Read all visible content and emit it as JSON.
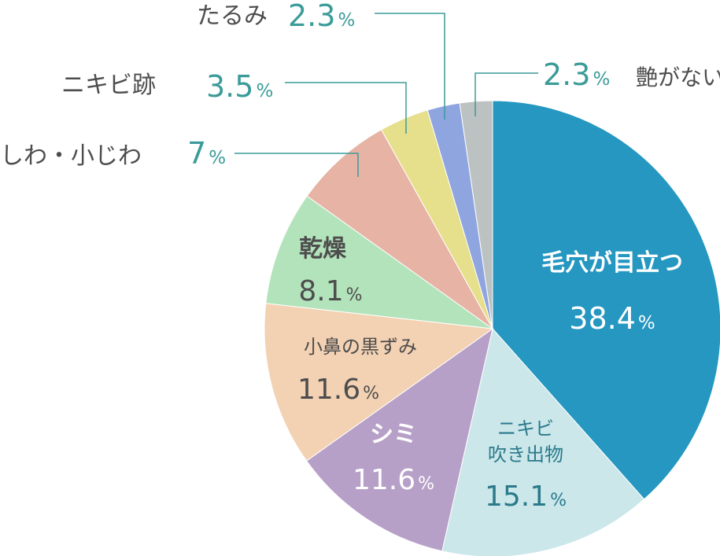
{
  "chart_data": {
    "type": "pie",
    "percent_symbol": "%",
    "slices": [
      {
        "name": "毛穴が目立つ",
        "value": 38.4,
        "value_text": "38.4",
        "color": "#2597c1"
      },
      {
        "name": "ニキビ吹き出物",
        "name_lines": [
          "ニキビ",
          "吹き出物"
        ],
        "value": 15.1,
        "value_text": "15.1",
        "color": "#cbe7ea"
      },
      {
        "name": "シミ",
        "value": 11.6,
        "value_text": "11.6",
        "color": "#b7a0c8"
      },
      {
        "name": "小鼻の黒ずみ",
        "value": 11.6,
        "value_text": "11.6",
        "color": "#f3d1b3"
      },
      {
        "name": "乾燥",
        "value": 8.1,
        "value_text": "8.1",
        "color": "#b3e3bb"
      },
      {
        "name": "しわ・小じわ",
        "value": 7,
        "value_text": "7",
        "color": "#e6b3a4"
      },
      {
        "name": "ニキビ跡",
        "value": 3.5,
        "value_text": "3.5",
        "color": "#e6df8b"
      },
      {
        "name": "たるみ",
        "value": 2.3,
        "value_text": "2.3",
        "color": "#8fa5df"
      },
      {
        "name": "艶がない",
        "value": 2.3,
        "value_text": "2.3",
        "color": "#bcc1c1"
      }
    ],
    "start": "top, clockwise",
    "colors": {
      "value_text": "#3b9b98",
      "dark_text": "#4d4d4d",
      "white_text": "#ffffff",
      "nikibi_text": "#2b7a8c",
      "leader_line": "#3b9b98"
    }
  }
}
